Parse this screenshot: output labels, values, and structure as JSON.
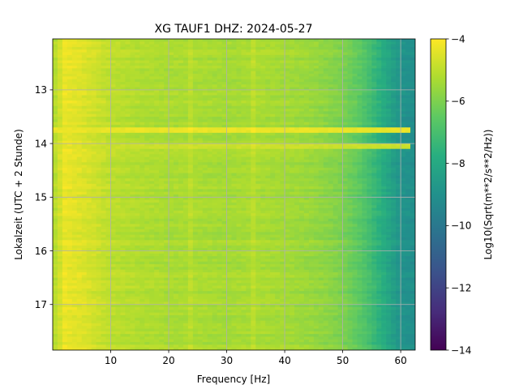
{
  "chart_data": {
    "type": "heatmap",
    "title": "XG TAUF1  DHZ: 2024-05-27",
    "xlabel": "Frequency [Hz]",
    "ylabel": "Lokalzeit (UTC + 2 Stunde)",
    "xlim": [
      0,
      62.5
    ],
    "ylim": [
      12.05,
      17.85
    ],
    "y_inverted": true,
    "x_ticks": [
      10,
      20,
      30,
      40,
      50,
      60
    ],
    "y_ticks": [
      13,
      14,
      15,
      16,
      17
    ],
    "grid": true,
    "colormap": "viridis",
    "colorbar": {
      "label": "Log10(Sqrt(m**2/s**2/Hz))",
      "range": [
        -14,
        -4
      ],
      "ticks": [
        -4,
        -6,
        -8,
        -10,
        -12,
        -14
      ]
    },
    "spectrum_profile": {
      "frequency_hz": [
        0,
        2,
        5,
        10,
        15,
        20,
        25,
        30,
        35,
        40,
        45,
        50,
        53,
        55,
        58,
        60,
        62.5
      ],
      "log10_amplitude": [
        -5.3,
        -4.3,
        -4.5,
        -5.0,
        -5.2,
        -5.3,
        -5.3,
        -5.4,
        -5.3,
        -5.4,
        -5.6,
        -6.0,
        -6.6,
        -7.2,
        -8.2,
        -8.9,
        -9.1
      ]
    },
    "bright_bands": [
      {
        "time": 13.75,
        "log10_amplitude": -4.3
      },
      {
        "time": 14.04,
        "log10_amplitude": -4.8
      }
    ],
    "bright_lines_hz": [
      24,
      34.5
    ]
  }
}
